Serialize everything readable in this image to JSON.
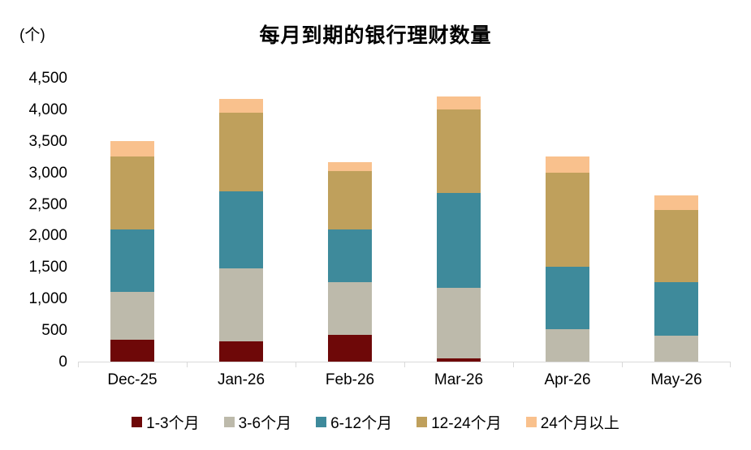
{
  "chart_data": {
    "type": "bar",
    "stacked": true,
    "title": "每月到期的银行理财数量",
    "unit_label": "(个)",
    "categories": [
      "Dec-25",
      "Jan-26",
      "Feb-26",
      "Mar-26",
      "Apr-26",
      "May-26"
    ],
    "series": [
      {
        "name": "1-3个月",
        "color": "#6E0808",
        "values": [
          350,
          320,
          430,
          50,
          0,
          0
        ]
      },
      {
        "name": "3-6个月",
        "color": "#BDBAAB",
        "values": [
          750,
          1160,
          830,
          1120,
          510,
          410
        ]
      },
      {
        "name": "6-12个月",
        "color": "#3E8A9B",
        "values": [
          1000,
          1220,
          840,
          1500,
          1000,
          850
        ]
      },
      {
        "name": "12-24个月",
        "color": "#BFA05C",
        "values": [
          1150,
          1250,
          920,
          1330,
          1490,
          1140
        ]
      },
      {
        "name": "24个月以上",
        "color": "#F9C18D",
        "values": [
          250,
          220,
          140,
          200,
          250,
          240
        ]
      }
    ],
    "totals": [
      3500,
      4170,
      3160,
      4200,
      3250,
      2640
    ],
    "ylim": [
      0,
      4500
    ],
    "ytick_step": 500,
    "yticks": [
      "0",
      "500",
      "1,000",
      "1,500",
      "2,000",
      "2,500",
      "3,000",
      "3,500",
      "4,000",
      "4,500"
    ],
    "xlabel": "",
    "ylabel": "(个)",
    "grid": false,
    "legend_position": "bottom",
    "axis_color": "#D9D9D9"
  }
}
